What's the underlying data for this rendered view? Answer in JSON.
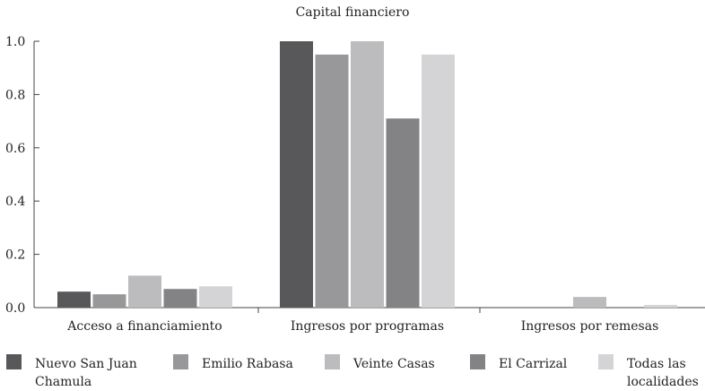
{
  "chart_data": {
    "type": "bar",
    "title": "Capital financiero",
    "xlabel": "",
    "ylabel": "",
    "ylim": [
      0,
      1.0
    ],
    "yticks": [
      "0.0",
      "0.2",
      "0.4",
      "0.6",
      "0.8",
      "1.0"
    ],
    "categories": [
      "Acceso a financiamiento",
      "Ingresos por programas",
      "Ingresos por remesas"
    ],
    "series": [
      {
        "name": "Nuevo San Juan Chamula",
        "name_lines": [
          "Nuevo San Juan",
          "Chamula"
        ],
        "color": "#58585a",
        "values": [
          0.06,
          1.0,
          0.0
        ]
      },
      {
        "name": "Emilio Rabasa",
        "name_lines": [
          "Emilio Rabasa"
        ],
        "color": "#98989a",
        "values": [
          0.05,
          0.95,
          0.0
        ]
      },
      {
        "name": "Veinte Casas",
        "name_lines": [
          "Veinte Casas"
        ],
        "color": "#bcbcbe",
        "values": [
          0.12,
          1.0,
          0.04
        ]
      },
      {
        "name": "El Carrizal",
        "name_lines": [
          "El Carrizal"
        ],
        "color": "#838385",
        "values": [
          0.07,
          0.71,
          0.0
        ]
      },
      {
        "name": "Todas las localidades",
        "name_lines": [
          "Todas las",
          "localidades"
        ],
        "color": "#d4d4d6",
        "values": [
          0.08,
          0.95,
          0.01
        ]
      }
    ],
    "legend_position": "bottom"
  }
}
